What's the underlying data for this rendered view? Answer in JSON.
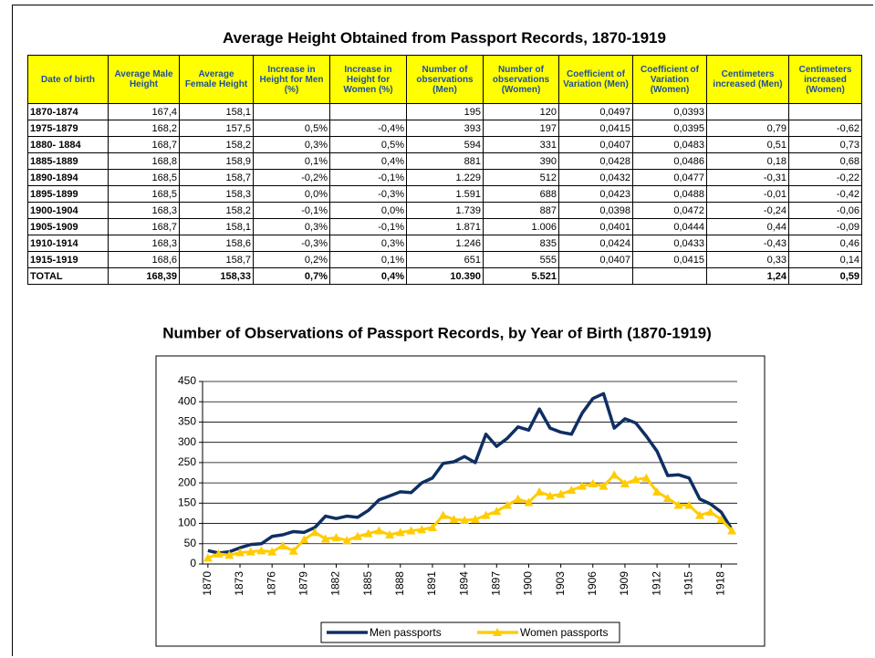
{
  "table": {
    "title": "Average Height Obtained from Passport Records, 1870-1919",
    "headers": [
      "Date of birth",
      "Average Male Height",
      "Average Female Height",
      "Increase in Height for Men (%)",
      "Increase in Height for Women (%)",
      "Number of observations (Men)",
      "Number of observations (Women)",
      "Coefficient of Variation (Men)",
      "Coefficient of Variation (Women)",
      "Centimeters increased (Men)",
      "Centimeters increased (Women)"
    ],
    "rows": [
      [
        "1870-1874",
        "167,4",
        "158,1",
        null,
        null,
        "195",
        "120",
        "0,0497",
        "0,0393",
        null,
        null
      ],
      [
        "1975-1879",
        "168,2",
        "157,5",
        "0,5%",
        "-0,4%",
        "393",
        "197",
        "0,0415",
        "0,0395",
        "0,79",
        "-0,62"
      ],
      [
        "1880- 1884",
        "168,7",
        "158,2",
        "0,3%",
        "0,5%",
        "594",
        "331",
        "0,0407",
        "0,0483",
        "0,51",
        "0,73"
      ],
      [
        "1885-1889",
        "168,8",
        "158,9",
        "0,1%",
        "0,4%",
        "881",
        "390",
        "0,0428",
        "0,0486",
        "0,18",
        "0,68"
      ],
      [
        "1890-1894",
        "168,5",
        "158,7",
        "-0,2%",
        "-0,1%",
        "1.229",
        "512",
        "0,0432",
        "0,0477",
        "-0,31",
        "-0,22"
      ],
      [
        "1895-1899",
        "168,5",
        "158,3",
        "0,0%",
        "-0,3%",
        "1.591",
        "688",
        "0,0423",
        "0,0488",
        "-0,01",
        "-0,42"
      ],
      [
        "1900-1904",
        "168,3",
        "158,2",
        "-0,1%",
        "0,0%",
        "1.739",
        "887",
        "0,0398",
        "0,0472",
        "-0,24",
        "-0,06"
      ],
      [
        "1905-1909",
        "168,7",
        "158,1",
        "0,3%",
        "-0,1%",
        "1.871",
        "1.006",
        "0,0401",
        "0,0444",
        "0,44",
        "-0,09"
      ],
      [
        "1910-1914",
        "168,3",
        "158,6",
        "-0,3%",
        "0,3%",
        "1.246",
        "835",
        "0,0424",
        "0,0433",
        "-0,43",
        "0,46"
      ],
      [
        "1915-1919",
        "168,6",
        "158,7",
        "0,2%",
        "0,1%",
        "651",
        "555",
        "0,0407",
        "0,0415",
        "0,33",
        "0,14"
      ],
      [
        "TOTAL",
        "168,39",
        "158,33",
        "0,7%",
        "0,4%",
        "10.390",
        "5.521",
        null,
        null,
        "1,24",
        "0,59"
      ]
    ]
  },
  "chart_data": {
    "type": "line",
    "title": "Number of Observations of Passport Records, by Year of Birth (1870-1919)",
    "x": [
      1870,
      1871,
      1872,
      1873,
      1874,
      1875,
      1876,
      1877,
      1878,
      1879,
      1880,
      1881,
      1882,
      1883,
      1884,
      1885,
      1886,
      1887,
      1888,
      1889,
      1890,
      1891,
      1892,
      1893,
      1894,
      1895,
      1896,
      1897,
      1898,
      1899,
      1900,
      1901,
      1902,
      1903,
      1904,
      1905,
      1906,
      1907,
      1908,
      1909,
      1910,
      1911,
      1912,
      1913,
      1914,
      1915,
      1916,
      1917,
      1918,
      1919
    ],
    "series": [
      {
        "name": "Men passports",
        "color": "#0f2f63",
        "values": [
          33,
          27,
          30,
          40,
          48,
          50,
          68,
          72,
          80,
          78,
          90,
          118,
          112,
          118,
          115,
          132,
          158,
          168,
          178,
          176,
          200,
          212,
          248,
          252,
          265,
          250,
          320,
          290,
          310,
          338,
          330,
          382,
          335,
          325,
          320,
          372,
          408,
          420,
          335,
          358,
          348,
          315,
          278,
          218,
          220,
          212,
          160,
          148,
          128,
          85
        ]
      },
      {
        "name": "Women passports",
        "color": "#ffcc00",
        "values": [
          15,
          25,
          22,
          28,
          30,
          33,
          30,
          45,
          32,
          60,
          78,
          62,
          65,
          58,
          68,
          75,
          82,
          72,
          78,
          82,
          85,
          90,
          120,
          110,
          108,
          110,
          120,
          130,
          145,
          160,
          152,
          178,
          168,
          172,
          182,
          192,
          198,
          192,
          220,
          198,
          208,
          212,
          178,
          162,
          145,
          145,
          120,
          128,
          110,
          82
        ]
      }
    ],
    "xlim": [
      1869.5,
      1919.5
    ],
    "xticks": [
      1870,
      1873,
      1876,
      1879,
      1882,
      1885,
      1888,
      1891,
      1894,
      1897,
      1900,
      1903,
      1906,
      1909,
      1912,
      1915,
      1918
    ],
    "ylim": [
      0,
      450
    ],
    "yticks": [
      0,
      50,
      100,
      150,
      200,
      250,
      300,
      350,
      400,
      450
    ],
    "grid": true,
    "legend": "bottom"
  }
}
